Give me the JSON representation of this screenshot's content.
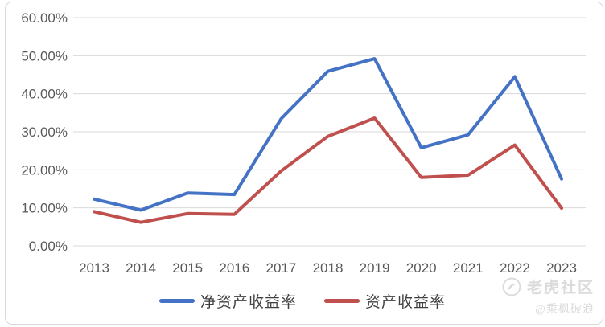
{
  "colors": {
    "blue": "#4472C4",
    "red": "#C0504D",
    "gridline": "#D9D9D9",
    "axis_text": "#595959",
    "legend_text": "#404040",
    "watermark": "#DBDBDB",
    "border": "#D9D9D9",
    "background": "#FFFFFF"
  },
  "legend": {
    "items": [
      {
        "label": "净资产收益率",
        "color": "#4472C4"
      },
      {
        "label": "资产收益率",
        "color": "#C0504D"
      }
    ]
  },
  "watermark": {
    "icon": "tiger-logo-icon",
    "brand": "老虎社区",
    "handle": "@乘枫破浪"
  },
  "chart_data": {
    "type": "line",
    "title": "",
    "xlabel": "",
    "ylabel": "",
    "categories": [
      "2013",
      "2014",
      "2015",
      "2016",
      "2017",
      "2018",
      "2019",
      "2020",
      "2021",
      "2022",
      "2023"
    ],
    "series": [
      {
        "name": "净资产收益率",
        "color": "#4472C4",
        "values": [
          12.3,
          9.4,
          13.9,
          13.5,
          33.4,
          45.9,
          49.2,
          25.8,
          29.2,
          44.5,
          17.6
        ]
      },
      {
        "name": "资产收益率",
        "color": "#C0504D",
        "values": [
          9.0,
          6.2,
          8.5,
          8.3,
          19.7,
          28.8,
          33.6,
          18.0,
          18.6,
          26.5,
          9.9
        ]
      }
    ],
    "ylim": [
      0,
      60
    ],
    "y_ticks": [
      {
        "value": 0,
        "label": "0.00%"
      },
      {
        "value": 10,
        "label": "10.00%"
      },
      {
        "value": 20,
        "label": "20.00%"
      },
      {
        "value": 30,
        "label": "30.00%"
      },
      {
        "value": 40,
        "label": "40.00%"
      },
      {
        "value": 50,
        "label": "50.00%"
      },
      {
        "value": 60,
        "label": "60.00%"
      }
    ],
    "grid": "horizontal",
    "legend_position": "bottom"
  }
}
